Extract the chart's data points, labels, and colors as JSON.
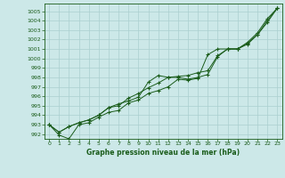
{
  "xlabel": "Graphe pression niveau de la mer (hPa)",
  "xlim": [
    -0.5,
    23.5
  ],
  "ylim": [
    991.5,
    1005.8
  ],
  "yticks": [
    992,
    993,
    994,
    995,
    996,
    997,
    998,
    999,
    1000,
    1001,
    1002,
    1003,
    1004,
    1005
  ],
  "xticks": [
    0,
    1,
    2,
    3,
    4,
    5,
    6,
    7,
    8,
    9,
    10,
    11,
    12,
    13,
    14,
    15,
    16,
    17,
    18,
    19,
    20,
    21,
    22,
    23
  ],
  "bg_color": "#cce8e8",
  "line_color": "#1a5c1a",
  "grid_color": "#aacfcf",
  "line1": [
    993.0,
    991.9,
    991.5,
    993.0,
    993.2,
    993.8,
    994.3,
    994.5,
    995.3,
    995.6,
    996.3,
    996.6,
    997.0,
    997.8,
    997.7,
    997.9,
    1000.4,
    1001.0,
    1001.0,
    1001.0,
    1001.5,
    1002.5,
    1004.0,
    1005.3
  ],
  "line2": [
    993.0,
    992.2,
    992.8,
    993.2,
    993.5,
    994.0,
    994.8,
    995.2,
    995.5,
    995.9,
    997.5,
    998.2,
    998.0,
    998.0,
    997.8,
    998.0,
    998.3,
    1000.2,
    1001.0,
    1001.0,
    1001.6,
    1002.5,
    1003.8,
    1005.3
  ],
  "line3": [
    993.0,
    992.2,
    992.8,
    993.2,
    993.5,
    994.0,
    994.8,
    995.0,
    995.8,
    996.3,
    996.9,
    997.4,
    998.0,
    998.1,
    998.2,
    998.5,
    998.7,
    1000.3,
    1001.0,
    1001.0,
    1001.7,
    1002.7,
    1004.2,
    1005.3
  ]
}
